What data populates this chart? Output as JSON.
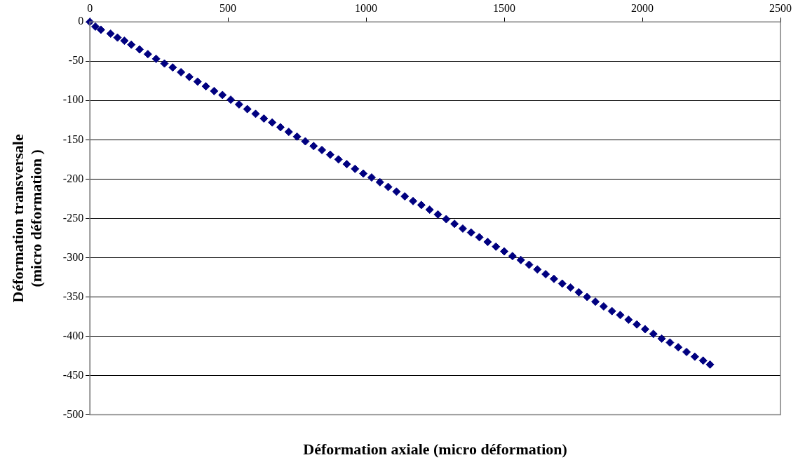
{
  "chart_data": {
    "type": "scatter",
    "xlabel": "Déformation axiale (micro déformation)",
    "ylabel": "Déformation transversale\n(micro déformation )",
    "xlim": [
      0,
      2500
    ],
    "xticks": [
      0,
      500,
      1000,
      1500,
      2000,
      2500
    ],
    "ylim": [
      -500,
      0
    ],
    "yticks": [
      0,
      -50,
      -100,
      -150,
      -200,
      -250,
      -300,
      -350,
      -400,
      -450,
      -500
    ],
    "grid": "y",
    "legend": false,
    "marker": "diamond",
    "series": [
      {
        "color": "#000080",
        "x": [
          0,
          20,
          40,
          75,
          100,
          125,
          150,
          180,
          210,
          240,
          270,
          300,
          330,
          360,
          390,
          420,
          450,
          480,
          510,
          540,
          570,
          600,
          630,
          660,
          690,
          720,
          750,
          780,
          810,
          840,
          870,
          900,
          930,
          960,
          990,
          1020,
          1050,
          1080,
          1110,
          1140,
          1170,
          1200,
          1230,
          1260,
          1290,
          1320,
          1350,
          1380,
          1410,
          1440,
          1470,
          1500,
          1530,
          1560,
          1590,
          1620,
          1650,
          1680,
          1710,
          1740,
          1770,
          1800,
          1830,
          1860,
          1890,
          1920,
          1950,
          1980,
          2010,
          2040,
          2070,
          2100,
          2130,
          2160,
          2190,
          2220,
          2245
        ],
        "values": [
          0,
          -6,
          -10,
          -15,
          -20,
          -24,
          -29,
          -35,
          -41,
          -47,
          -53,
          -58,
          -64,
          -70,
          -76,
          -82,
          -88,
          -93,
          -99,
          -105,
          -111,
          -117,
          -123,
          -128,
          -134,
          -140,
          -146,
          -152,
          -158,
          -163,
          -169,
          -175,
          -181,
          -187,
          -193,
          -198,
          -204,
          -210,
          -216,
          -222,
          -228,
          -233,
          -239,
          -245,
          -251,
          -257,
          -263,
          -268,
          -274,
          -280,
          -286,
          -292,
          -298,
          -303,
          -309,
          -315,
          -321,
          -327,
          -333,
          -338,
          -344,
          -350,
          -356,
          -362,
          -368,
          -373,
          -379,
          -385,
          -391,
          -397,
          -403,
          -408,
          -414,
          -420,
          -426,
          -431,
          -436
        ]
      }
    ]
  }
}
